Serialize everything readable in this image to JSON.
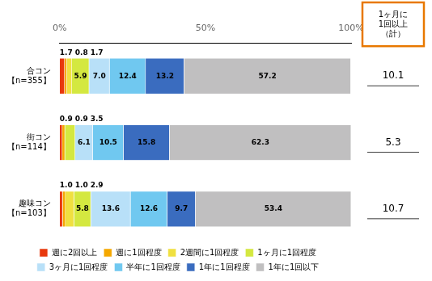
{
  "chart_data": {
    "type": "bar",
    "orientation": "horizontal",
    "stacked": true,
    "data_labels": true,
    "grid": false,
    "legend": "bottom",
    "categories": [
      "合コン\n【n=355】",
      "街コン\n【n=114】",
      "趣味コン\n【n=103】"
    ],
    "series": [
      {
        "name": "週に2回以上",
        "color": "#e8380d",
        "values": [
          1.7,
          0.9,
          1.0
        ],
        "value_labels": [
          "1.7",
          "0.9",
          "1.0"
        ]
      },
      {
        "name": "週に1回程度",
        "color": "#f5a800",
        "values": [
          0.8,
          0.9,
          1.0
        ],
        "value_labels": [
          "0.8",
          "0.9",
          "1.0"
        ]
      },
      {
        "name": "2週間に1回程度",
        "color": "#f0e040",
        "values": [
          1.7,
          0.0,
          2.9
        ],
        "value_labels": [
          "1.7",
          null,
          "2.9"
        ]
      },
      {
        "name": "1ヶ月に1回程度",
        "color": "#d4e840",
        "values": [
          5.9,
          3.5,
          5.8
        ],
        "value_labels": [
          "5.9",
          "3.5",
          "5.8"
        ]
      },
      {
        "name": "3ヶ月に1回程度",
        "color": "#b8e0f8",
        "values": [
          7.0,
          6.1,
          13.6
        ],
        "value_labels": [
          "7.0",
          "6.1",
          "13.6"
        ]
      },
      {
        "name": "半年に1回程度",
        "color": "#70c8f0",
        "values": [
          12.4,
          10.5,
          12.6
        ],
        "value_labels": [
          "12.4",
          "10.5",
          "12.6"
        ]
      },
      {
        "name": "1年に1回程度",
        "color": "#3a6cbf",
        "values": [
          13.2,
          15.8,
          9.7
        ],
        "value_labels": [
          "13.2",
          "15.8",
          "9.7"
        ]
      },
      {
        "name": "1年に1回以下",
        "color": "#c0bfc0",
        "values": [
          57.2,
          62.3,
          53.4
        ],
        "value_labels": [
          "57.2",
          "62.3",
          "53.4"
        ]
      }
    ],
    "xlim": [
      0,
      100
    ],
    "xticks": [
      {
        "value": 0,
        "label": "0%"
      },
      {
        "value": 50,
        "label": "50%"
      },
      {
        "value": 100,
        "label": "100%"
      }
    ],
    "summary": {
      "title": "1ヶ月に\n1回以上\n（計）",
      "color": "#e87800",
      "values": [
        10.1,
        5.3,
        10.7
      ]
    }
  }
}
